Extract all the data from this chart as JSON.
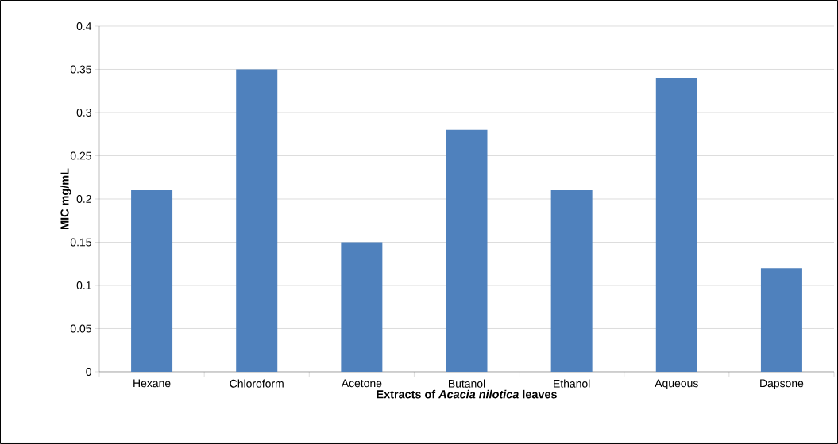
{
  "chart_data": {
    "type": "bar",
    "xlabel": "**Extracts of *Acacia nilotica* leaves**",
    "ylabel": "MIC mg/mL",
    "categories": [
      "Hexane",
      "Chloroform",
      "Acetone",
      "Butanol",
      "Ethanol",
      "Aqueous",
      "Dapsone"
    ],
    "values": [
      0.21,
      0.35,
      0.15,
      0.28,
      0.21,
      0.34,
      0.12
    ],
    "color": "#4f81bd",
    "ylim": [
      0,
      0.4
    ],
    "yticks": [
      0,
      0.05,
      0.1,
      0.15,
      0.2,
      0.25,
      0.3,
      0.35,
      0.4
    ],
    "grid": "y"
  }
}
